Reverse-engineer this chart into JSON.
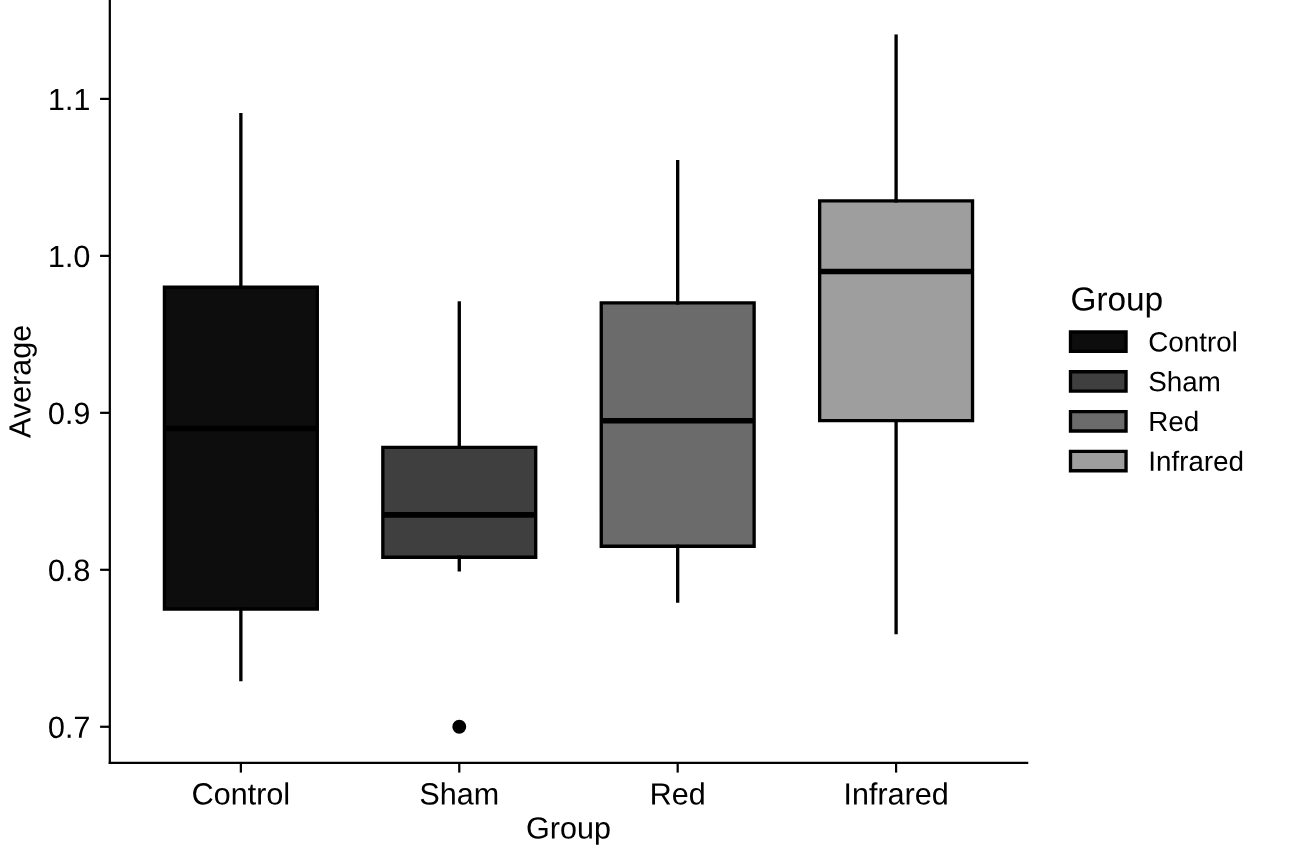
{
  "chart_data": {
    "type": "box",
    "xlabel": "Group",
    "ylabel": "Average",
    "legend_title": "Group",
    "legend": "right",
    "categories": [
      "Control",
      "Sham",
      "Red",
      "Infrared"
    ],
    "series": [
      {
        "name": "Control",
        "color": "#0d0d0d",
        "boxes": [
          {
            "low": 0.73,
            "q1": 0.775,
            "median": 0.89,
            "q3": 0.98,
            "high": 1.09
          },
          null,
          null,
          null
        ]
      },
      {
        "name": "Sham",
        "color": "#3f3f3f",
        "boxes": [
          null,
          {
            "low": 0.8,
            "q1": 0.808,
            "median": 0.835,
            "q3": 0.878,
            "high": 0.97,
            "outliers": [
              0.7
            ]
          },
          null,
          null
        ]
      },
      {
        "name": "Red",
        "color": "#6b6b6b",
        "boxes": [
          null,
          null,
          {
            "low": 0.78,
            "q1": 0.815,
            "median": 0.895,
            "q3": 0.97,
            "high": 1.06
          },
          null
        ]
      },
      {
        "name": "Infrared",
        "color": "#9e9e9e",
        "boxes": [
          null,
          null,
          null,
          {
            "low": 0.76,
            "q1": 0.895,
            "median": 0.99,
            "q3": 1.035,
            "high": 1.14
          }
        ]
      }
    ],
    "ylim": [
      0.677,
      1.163
    ],
    "yticks": [
      0.7,
      0.8,
      0.9,
      {
        "value": 1.0,
        "label": "1.0"
      },
      1.1
    ],
    "grid": false
  }
}
